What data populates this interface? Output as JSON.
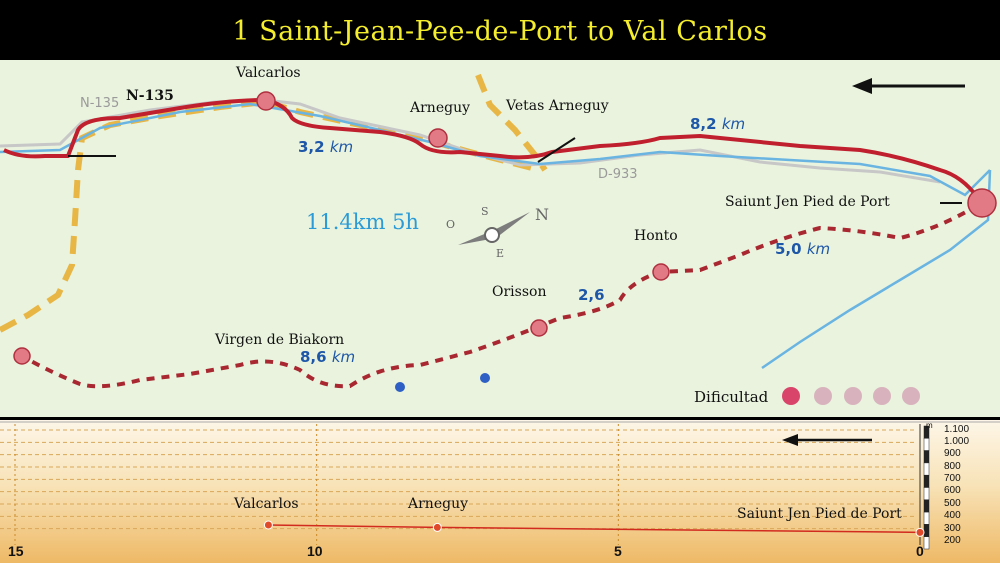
{
  "title": "1 Saint-Jean-Pee-de-Port to Val Carlos",
  "map": {
    "summary": "11.4km 5h",
    "places": {
      "valcarlos": "Valcarlos",
      "arneguy": "Arneguy",
      "vetas_arneguy": "Vetas Arneguy",
      "saint_jean": "Saiunt Jen Pied de Port",
      "honto": "Honto",
      "orisson": "Orisson",
      "virgen": "Virgen de Biakorn"
    },
    "roads": {
      "n135_black": "N-135",
      "n135_grey": "N-135",
      "d933": "D-933"
    },
    "distances": {
      "d1_value": "3,2",
      "d2_value": "8,2",
      "d3_value": "5,0",
      "d4_value": "2,6",
      "d5_value": "8,6",
      "unit": "km"
    },
    "difficulty": {
      "label": "Dificultad",
      "level": 1,
      "max": 5
    },
    "compass": {
      "n": "N",
      "s": "S",
      "e": "E",
      "o": "O"
    },
    "colors": {
      "route": "#c0202e",
      "dotted_route": "#a82730",
      "river": "#6ab4e2",
      "yellow_path": "#e8b645",
      "grey_road": "#bdbdbd",
      "map_bg": "#e9f3de",
      "title": "#f4ee2c",
      "distance": "#1e57a8"
    }
  },
  "profile": {
    "labels": {
      "valcarlos": "Valcarlos",
      "arneguy": "Arneguy",
      "saint_jean": "Saiunt Jen Pied de Port"
    },
    "x_ticks": [
      "15",
      "10",
      "5",
      "0"
    ],
    "y_ticks": [
      "1.100",
      "1.000",
      "900",
      "800",
      "700",
      "600",
      "500",
      "400",
      "300",
      "200"
    ],
    "unit": "m",
    "chart_data": {
      "type": "line",
      "x": [
        10.8,
        8,
        0
      ],
      "y": [
        330,
        310,
        270
      ],
      "xlim": [
        15,
        0
      ],
      "ylim": [
        200,
        1100
      ]
    }
  }
}
